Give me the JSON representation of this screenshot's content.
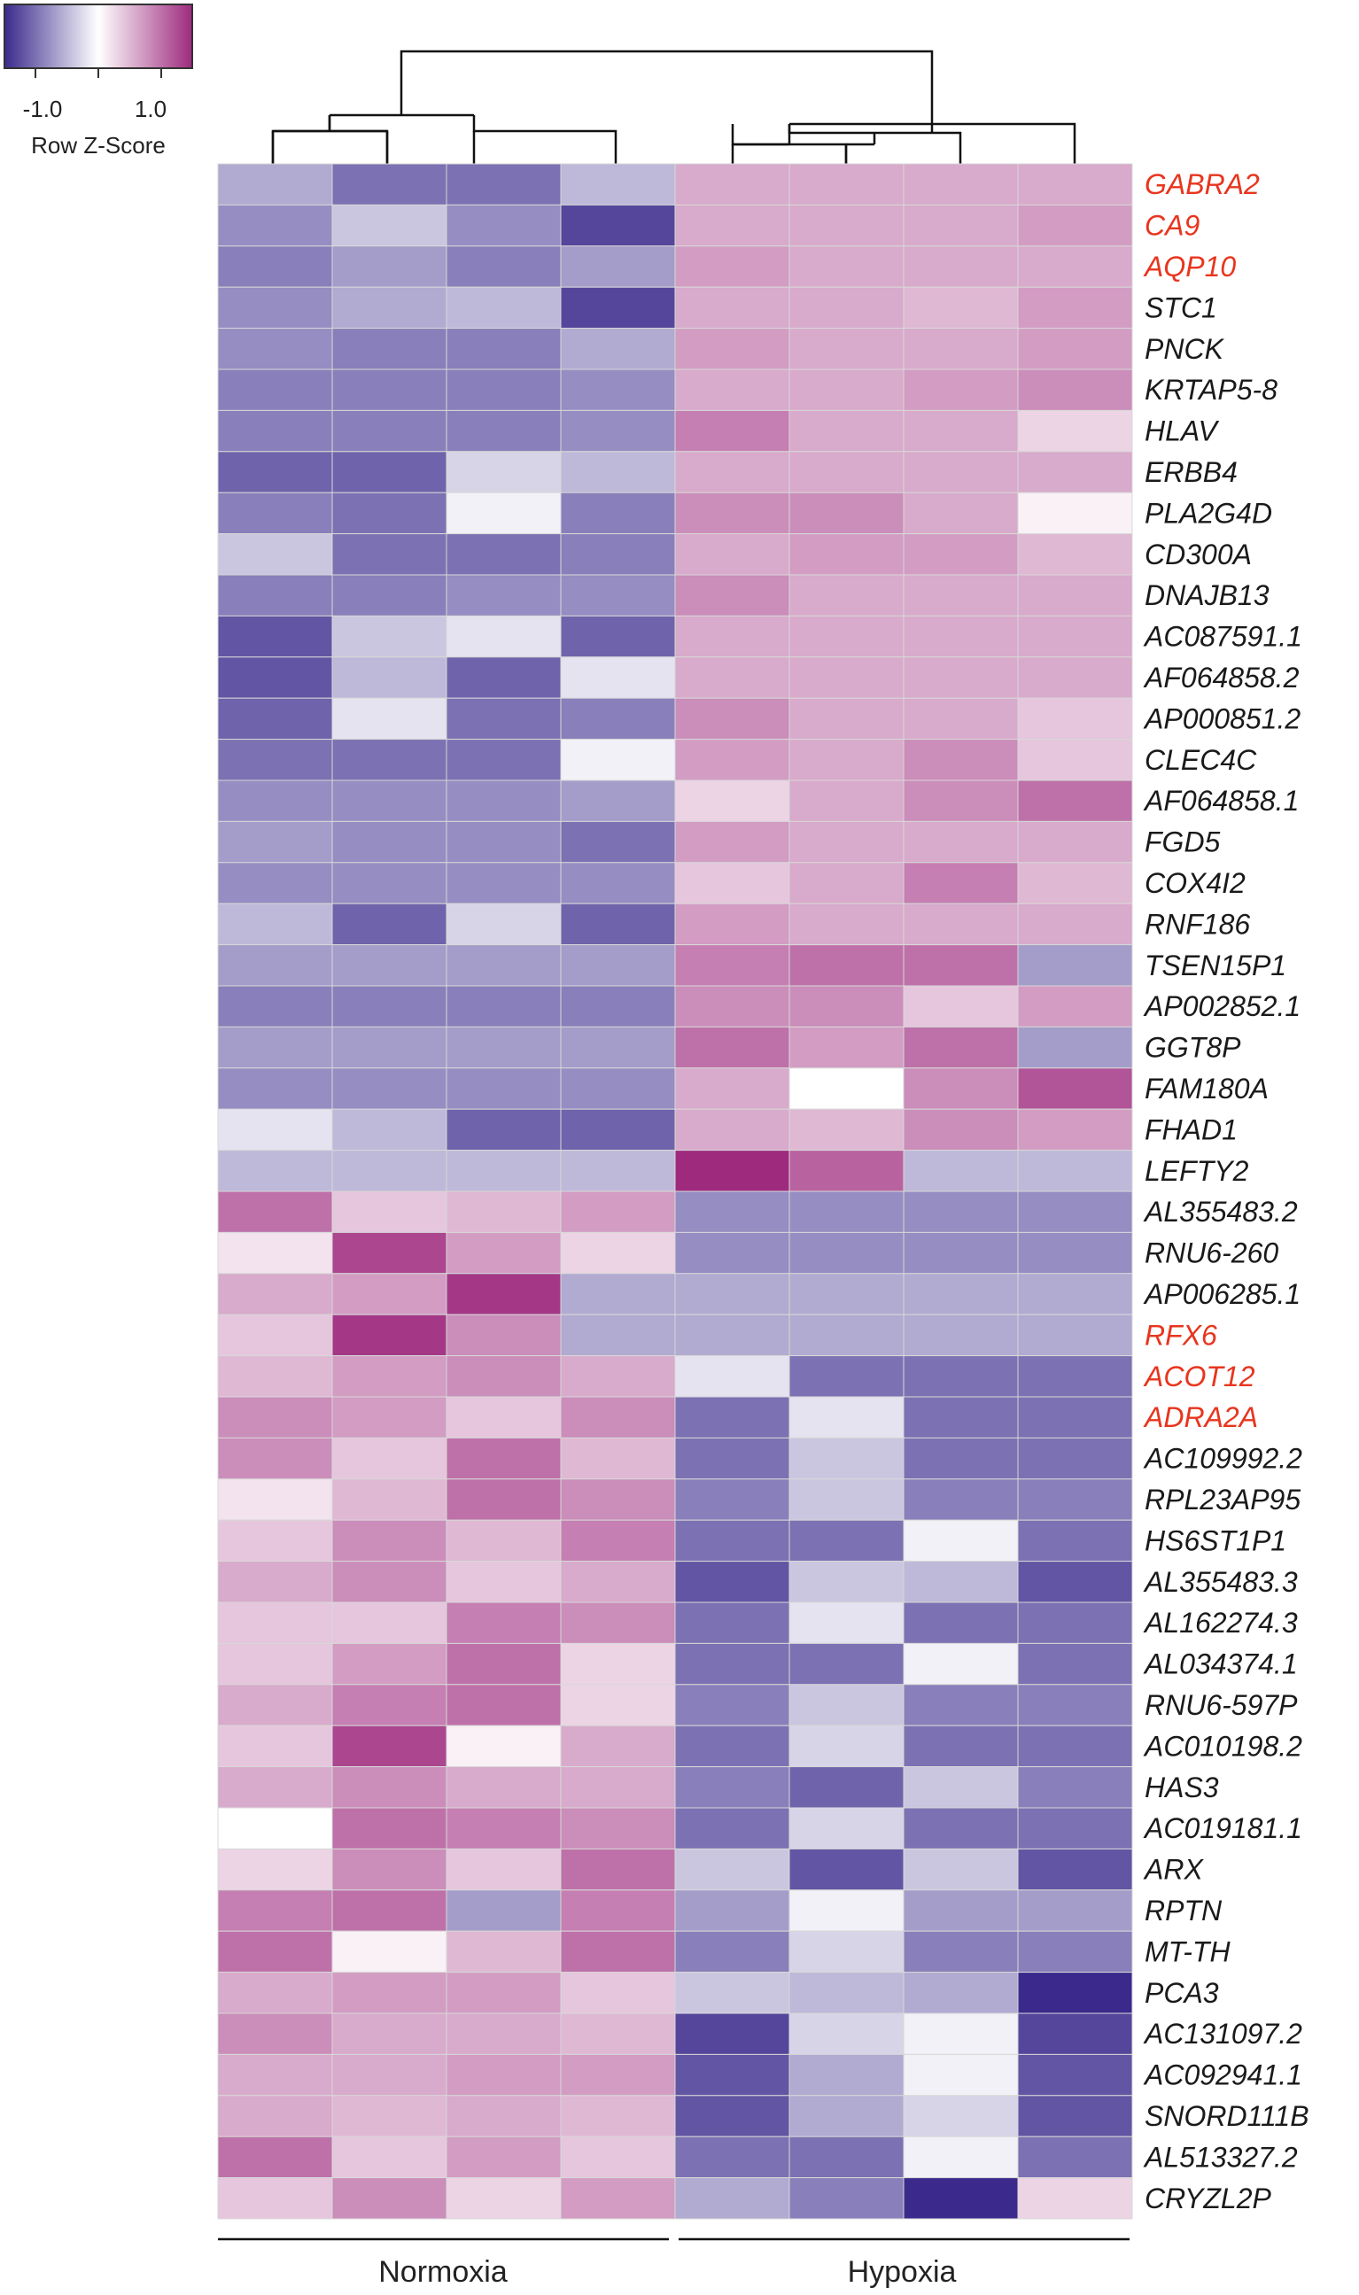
{
  "chart_data": {
    "type": "heatmap",
    "legend": {
      "title": "Row Z-Score",
      "tick_labels": [
        "-1.0",
        "1.0"
      ],
      "range": [
        -1.5,
        1.5
      ],
      "colors": {
        "low": "#3b2a8c",
        "mid": "#ffffff",
        "high": "#9e2a7e"
      }
    },
    "groups": [
      {
        "label": "Normoxia",
        "columns": [
          0,
          1,
          2,
          3
        ]
      },
      {
        "label": "Hypoxia",
        "columns": [
          4,
          5,
          6,
          7
        ]
      }
    ],
    "columns": 8,
    "highlight_color": "#e8351e",
    "rows": [
      {
        "gene": "GABRA2",
        "highlight": true,
        "values": [
          -0.6,
          -1.0,
          -1.0,
          -0.5,
          0.6,
          0.6,
          0.6,
          0.6
        ]
      },
      {
        "gene": "CA9",
        "highlight": true,
        "values": [
          -0.8,
          -0.4,
          -0.8,
          -1.3,
          0.6,
          0.6,
          0.6,
          0.7
        ]
      },
      {
        "gene": "AQP10",
        "highlight": true,
        "values": [
          -0.9,
          -0.7,
          -0.9,
          -0.7,
          0.7,
          0.6,
          0.6,
          0.6
        ]
      },
      {
        "gene": "STC1",
        "highlight": false,
        "values": [
          -0.8,
          -0.6,
          -0.5,
          -1.3,
          0.6,
          0.6,
          0.5,
          0.7
        ]
      },
      {
        "gene": "PNCK",
        "highlight": false,
        "values": [
          -0.8,
          -0.9,
          -0.9,
          -0.6,
          0.7,
          0.6,
          0.6,
          0.7
        ]
      },
      {
        "gene": "KRTAP5-8",
        "highlight": false,
        "values": [
          -0.9,
          -0.9,
          -0.9,
          -0.8,
          0.6,
          0.6,
          0.7,
          0.8
        ]
      },
      {
        "gene": "HLAV",
        "highlight": false,
        "values": [
          -0.9,
          -0.9,
          -0.9,
          -0.8,
          0.9,
          0.6,
          0.6,
          0.3
        ]
      },
      {
        "gene": "ERBB4",
        "highlight": false,
        "values": [
          -1.1,
          -1.1,
          -0.3,
          -0.5,
          0.6,
          0.6,
          0.6,
          0.6
        ]
      },
      {
        "gene": "PLA2G4D",
        "highlight": false,
        "values": [
          -0.9,
          -1.0,
          -0.1,
          -0.9,
          0.8,
          0.8,
          0.6,
          0.1
        ]
      },
      {
        "gene": "CD300A",
        "highlight": false,
        "values": [
          -0.4,
          -1.0,
          -1.0,
          -0.9,
          0.6,
          0.7,
          0.7,
          0.5
        ]
      },
      {
        "gene": "DNAJB13",
        "highlight": false,
        "values": [
          -0.9,
          -0.9,
          -0.8,
          -0.8,
          0.8,
          0.6,
          0.6,
          0.6
        ]
      },
      {
        "gene": "AC087591.1",
        "highlight": false,
        "values": [
          -1.2,
          -0.4,
          -0.2,
          -1.1,
          0.6,
          0.6,
          0.6,
          0.6
        ]
      },
      {
        "gene": "AF064858.2",
        "highlight": false,
        "values": [
          -1.2,
          -0.5,
          -1.1,
          -0.2,
          0.6,
          0.6,
          0.6,
          0.6
        ]
      },
      {
        "gene": "AP000851.2",
        "highlight": false,
        "values": [
          -1.1,
          -0.2,
          -1.0,
          -0.9,
          0.8,
          0.6,
          0.6,
          0.4
        ]
      },
      {
        "gene": "CLEC4C",
        "highlight": false,
        "values": [
          -1.0,
          -1.0,
          -1.0,
          -0.1,
          0.7,
          0.6,
          0.8,
          0.4
        ]
      },
      {
        "gene": "AF064858.1",
        "highlight": false,
        "values": [
          -0.8,
          -0.8,
          -0.8,
          -0.7,
          0.3,
          0.6,
          0.8,
          1.0
        ]
      },
      {
        "gene": "FGD5",
        "highlight": false,
        "values": [
          -0.7,
          -0.8,
          -0.8,
          -1.0,
          0.7,
          0.6,
          0.6,
          0.6
        ]
      },
      {
        "gene": "COX4I2",
        "highlight": false,
        "values": [
          -0.8,
          -0.8,
          -0.8,
          -0.8,
          0.4,
          0.6,
          0.9,
          0.5
        ]
      },
      {
        "gene": "RNF186",
        "highlight": false,
        "values": [
          -0.5,
          -1.1,
          -0.3,
          -1.1,
          0.7,
          0.6,
          0.6,
          0.6
        ]
      },
      {
        "gene": "TSEN15P1",
        "highlight": false,
        "values": [
          -0.7,
          -0.7,
          -0.7,
          -0.7,
          0.9,
          1.0,
          1.0,
          -0.7
        ]
      },
      {
        "gene": "AP002852.1",
        "highlight": false,
        "values": [
          -0.9,
          -0.9,
          -0.9,
          -0.9,
          0.8,
          0.8,
          0.4,
          0.7
        ]
      },
      {
        "gene": "GGT8P",
        "highlight": false,
        "values": [
          -0.7,
          -0.7,
          -0.7,
          -0.7,
          1.0,
          0.7,
          1.0,
          -0.7
        ]
      },
      {
        "gene": "FAM180A",
        "highlight": false,
        "values": [
          -0.8,
          -0.8,
          -0.8,
          -0.8,
          0.6,
          0.0,
          0.8,
          1.2
        ]
      },
      {
        "gene": "FHAD1",
        "highlight": false,
        "values": [
          -0.2,
          -0.5,
          -1.1,
          -1.1,
          0.6,
          0.5,
          0.8,
          0.7
        ]
      },
      {
        "gene": "LEFTY2",
        "highlight": false,
        "values": [
          -0.5,
          -0.5,
          -0.5,
          -0.5,
          1.5,
          1.1,
          -0.5,
          -0.5
        ]
      },
      {
        "gene": "AL355483.2",
        "highlight": false,
        "values": [
          1.0,
          0.4,
          0.5,
          0.7,
          -0.8,
          -0.8,
          -0.8,
          -0.8
        ]
      },
      {
        "gene": "RNU6-260",
        "highlight": false,
        "values": [
          0.2,
          1.3,
          0.7,
          0.3,
          -0.8,
          -0.8,
          -0.8,
          -0.8
        ]
      },
      {
        "gene": "AP006285.1",
        "highlight": false,
        "values": [
          0.6,
          0.7,
          1.4,
          -0.6,
          -0.6,
          -0.6,
          -0.6,
          -0.6
        ]
      },
      {
        "gene": "RFX6",
        "highlight": true,
        "values": [
          0.4,
          1.4,
          0.8,
          -0.6,
          -0.6,
          -0.6,
          -0.6,
          -0.6
        ]
      },
      {
        "gene": "ACOT12",
        "highlight": true,
        "values": [
          0.5,
          0.7,
          0.8,
          0.6,
          -0.2,
          -1.0,
          -1.0,
          -1.0
        ]
      },
      {
        "gene": "ADRA2A",
        "highlight": true,
        "values": [
          0.8,
          0.7,
          0.4,
          0.8,
          -1.0,
          -0.2,
          -1.0,
          -1.0
        ]
      },
      {
        "gene": "AC109992.2",
        "highlight": false,
        "values": [
          0.8,
          0.4,
          1.0,
          0.5,
          -1.0,
          -0.4,
          -1.0,
          -1.0
        ]
      },
      {
        "gene": "RPL23AP95",
        "highlight": false,
        "values": [
          0.2,
          0.5,
          1.0,
          0.8,
          -0.9,
          -0.4,
          -0.9,
          -0.9
        ]
      },
      {
        "gene": "HS6ST1P1",
        "highlight": false,
        "values": [
          0.4,
          0.8,
          0.5,
          0.9,
          -1.0,
          -1.0,
          -0.1,
          -1.0
        ]
      },
      {
        "gene": "AL355483.3",
        "highlight": false,
        "values": [
          0.6,
          0.8,
          0.4,
          0.6,
          -1.2,
          -0.4,
          -0.5,
          -1.2
        ]
      },
      {
        "gene": "AL162274.3",
        "highlight": false,
        "values": [
          0.4,
          0.4,
          0.9,
          0.8,
          -1.0,
          -0.2,
          -1.0,
          -1.0
        ]
      },
      {
        "gene": "AL034374.1",
        "highlight": false,
        "values": [
          0.4,
          0.7,
          1.0,
          0.3,
          -1.0,
          -1.0,
          -0.1,
          -1.0
        ]
      },
      {
        "gene": "RNU6-597P",
        "highlight": false,
        "values": [
          0.6,
          0.9,
          1.0,
          0.3,
          -0.9,
          -0.4,
          -0.9,
          -0.9
        ]
      },
      {
        "gene": "AC010198.2",
        "highlight": false,
        "values": [
          0.4,
          1.3,
          0.1,
          0.6,
          -1.0,
          -0.3,
          -1.0,
          -1.0
        ]
      },
      {
        "gene": "HAS3",
        "highlight": false,
        "values": [
          0.6,
          0.8,
          0.6,
          0.6,
          -0.9,
          -1.1,
          -0.4,
          -0.9
        ]
      },
      {
        "gene": "AC019181.1",
        "highlight": false,
        "values": [
          0.0,
          1.0,
          0.9,
          0.8,
          -1.0,
          -0.3,
          -1.0,
          -1.0
        ]
      },
      {
        "gene": "ARX",
        "highlight": false,
        "values": [
          0.3,
          0.8,
          0.4,
          1.0,
          -0.4,
          -1.2,
          -0.4,
          -1.2
        ]
      },
      {
        "gene": "RPTN",
        "highlight": false,
        "values": [
          0.9,
          1.0,
          -0.7,
          0.9,
          -0.7,
          -0.1,
          -0.7,
          -0.7
        ]
      },
      {
        "gene": "MT-TH",
        "highlight": false,
        "values": [
          1.0,
          0.1,
          0.5,
          1.0,
          -0.9,
          -0.3,
          -0.9,
          -0.9
        ]
      },
      {
        "gene": "PCA3",
        "highlight": false,
        "values": [
          0.6,
          0.7,
          0.7,
          0.4,
          -0.4,
          -0.5,
          -0.6,
          -1.5
        ]
      },
      {
        "gene": "AC131097.2",
        "highlight": false,
        "values": [
          0.8,
          0.6,
          0.6,
          0.5,
          -1.3,
          -0.3,
          -0.1,
          -1.3
        ]
      },
      {
        "gene": "AC092941.1",
        "highlight": false,
        "values": [
          0.6,
          0.6,
          0.7,
          0.7,
          -1.2,
          -0.6,
          -0.1,
          -1.2
        ]
      },
      {
        "gene": "SNORD111B",
        "highlight": false,
        "values": [
          0.6,
          0.5,
          0.6,
          0.5,
          -1.2,
          -0.6,
          -0.3,
          -1.2
        ]
      },
      {
        "gene": "AL513327.2",
        "highlight": false,
        "values": [
          1.0,
          0.4,
          0.7,
          0.4,
          -1.0,
          -1.0,
          -0.1,
          -1.0
        ]
      },
      {
        "gene": "CRYZL2P",
        "highlight": false,
        "values": [
          0.4,
          0.8,
          0.3,
          0.7,
          -0.6,
          -0.9,
          -1.5,
          0.3
        ]
      }
    ]
  }
}
